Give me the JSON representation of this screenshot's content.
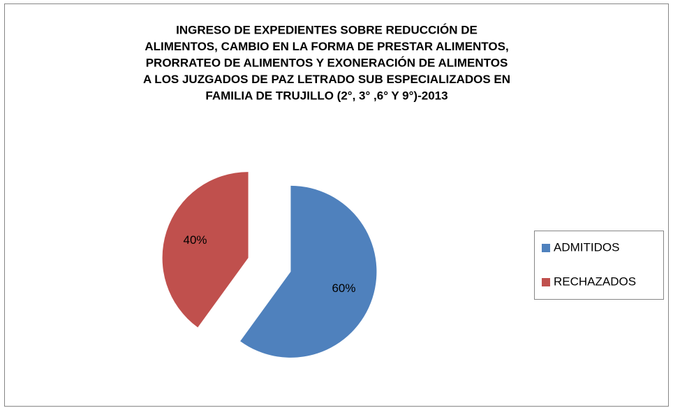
{
  "chart_data": {
    "type": "pie",
    "title": [
      "INGRESO DE EXPEDIENTES SOBRE REDUCCIÓN DE",
      "ALIMENTOS, CAMBIO EN LA FORMA DE PRESTAR ALIMENTOS,",
      "PRORRATEO DE ALIMENTOS Y EXONERACIÓN DE ALIMENTOS",
      "A LOS JUZGADOS DE PAZ LETRADO SUB ESPECIALIZADOS EN",
      "FAMILIA DE TRUJILLO (2°, 3° ,6° Y 9°)-2013"
    ],
    "categories": [
      "ADMITIDOS",
      "RECHAZADOS"
    ],
    "values": [
      60,
      40
    ],
    "value_labels": [
      "60%",
      "40%"
    ],
    "colors": [
      "#4f81bd",
      "#c0504d"
    ],
    "exploded": true,
    "legend": "right"
  }
}
